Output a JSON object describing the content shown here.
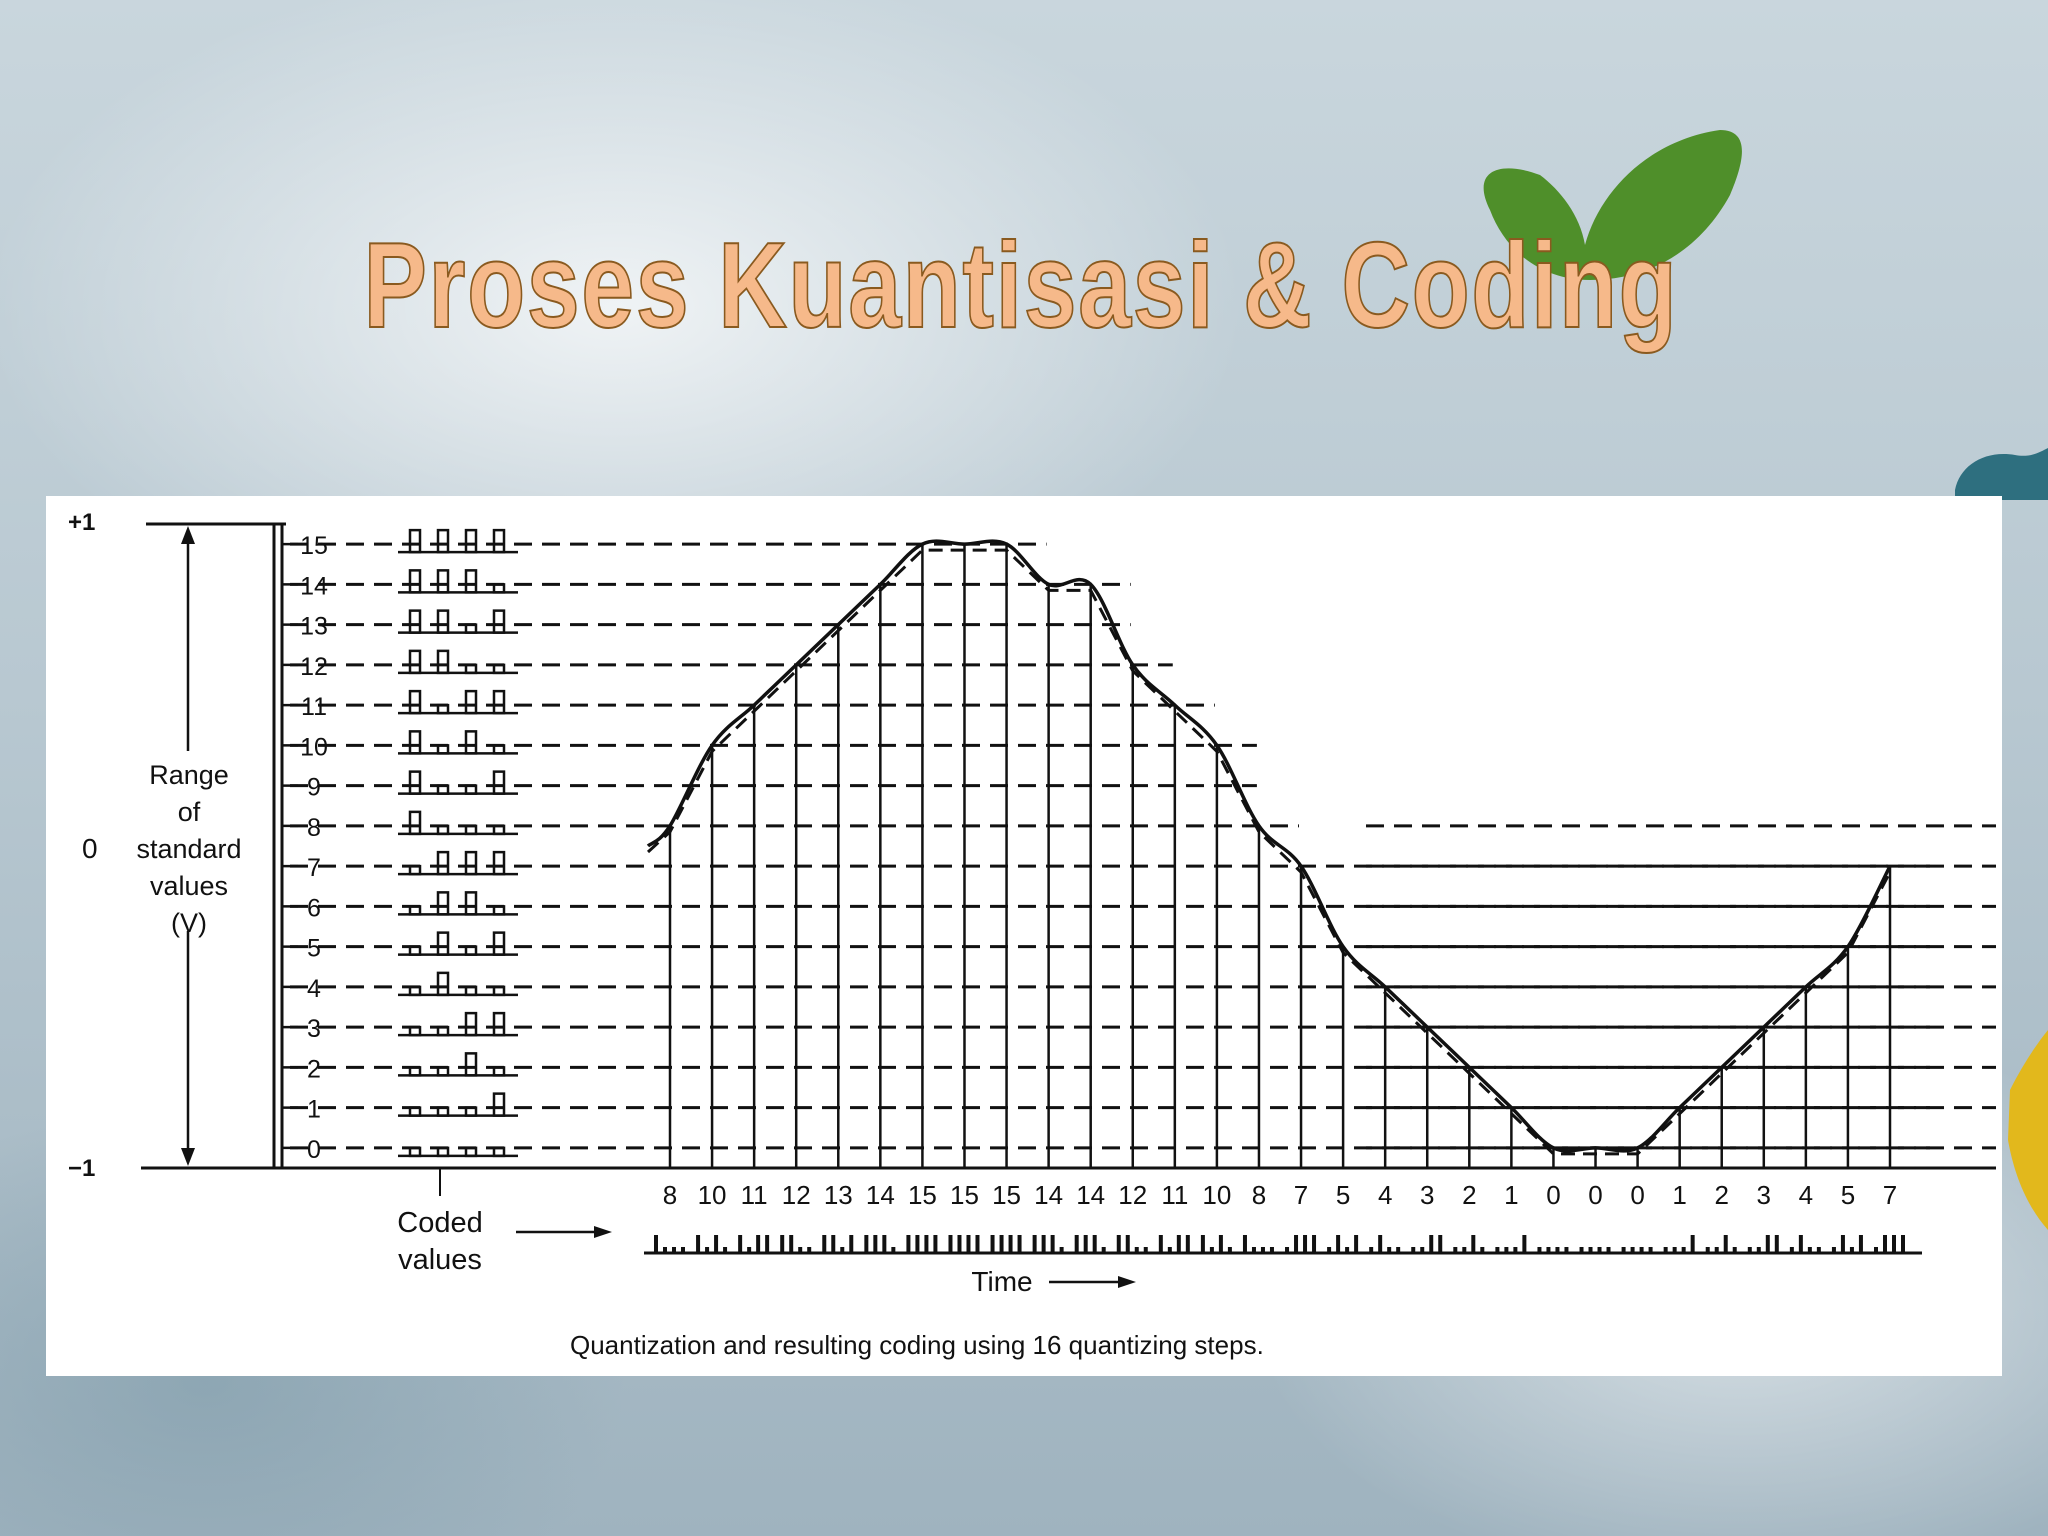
{
  "slide": {
    "title": "Proses Kuantisasi & Coding"
  },
  "figure": {
    "axis_top": "+1",
    "axis_mid": "0",
    "axis_bottom": "−1",
    "range_label": [
      "Range",
      "of",
      "standard",
      "values",
      "(V)"
    ],
    "coded_values_label": [
      "Coded",
      "values"
    ],
    "time_label": "Time",
    "caption": "Quantization and resulting coding using 16 quantizing steps."
  },
  "chart_data": {
    "type": "line",
    "levels": [
      0,
      1,
      2,
      3,
      4,
      5,
      6,
      7,
      8,
      9,
      10,
      11,
      12,
      13,
      14,
      15
    ],
    "sample_codes": [
      8,
      10,
      11,
      12,
      13,
      14,
      15,
      15,
      15,
      14,
      14,
      12,
      11,
      10,
      8,
      7,
      5,
      4,
      3,
      2,
      1,
      0,
      0,
      0,
      1,
      2,
      3,
      4,
      5,
      7
    ],
    "ylim": [
      -1,
      1
    ]
  },
  "colors": {
    "title_fill": "#f6b98a",
    "title_stroke": "#8a5a1f",
    "ink": "#111111",
    "leaf_green": "#4f8f2a",
    "leaf_teal": "#2e6f7f",
    "leaf_yellow": "#e2b81c"
  }
}
